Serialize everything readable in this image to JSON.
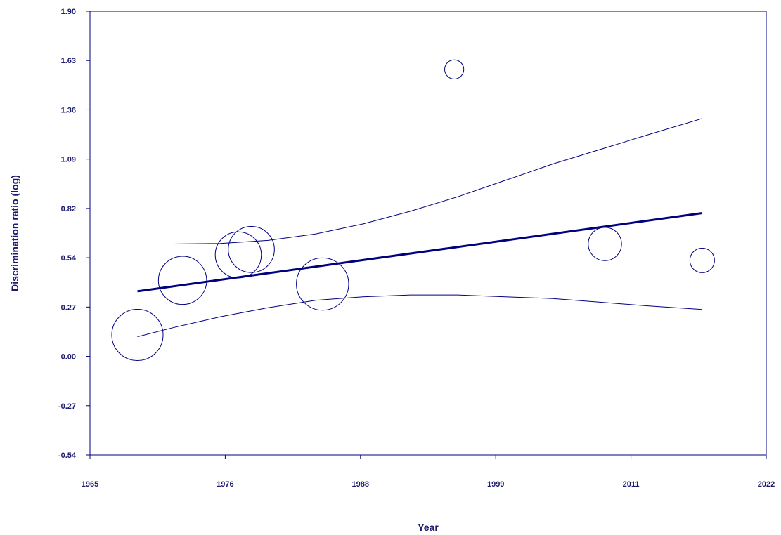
{
  "chart_data": {
    "type": "scatter",
    "title": "",
    "xlabel": "Year",
    "ylabel": "Discrimination ratio (log)",
    "xlim": [
      1965,
      2022
    ],
    "ylim": [
      -0.54,
      1.9
    ],
    "x_ticks": [
      "1965",
      "1976",
      "1988",
      "1999",
      "2011",
      "2022"
    ],
    "y_ticks": [
      "-0.54",
      "-0.27",
      "0.00",
      "0.27",
      "0.54",
      "0.82",
      "1.09",
      "1.36",
      "1.63",
      "1.90"
    ],
    "grid": false,
    "points": [
      {
        "x": 1969.0,
        "y": 0.12,
        "weight": 1.3
      },
      {
        "x": 1972.8,
        "y": 0.42,
        "weight": 1.15
      },
      {
        "x": 1977.5,
        "y": 0.56,
        "weight": 1.05
      },
      {
        "x": 1978.6,
        "y": 0.59,
        "weight": 1.05
      },
      {
        "x": 1984.6,
        "y": 0.4,
        "weight": 1.35
      },
      {
        "x": 1995.7,
        "y": 1.58,
        "weight": 0.18
      },
      {
        "x": 2008.4,
        "y": 0.62,
        "weight": 0.55
      },
      {
        "x": 2016.6,
        "y": 0.53,
        "weight": 0.3
      }
    ],
    "regression": {
      "x0": 1969.0,
      "x1": 2016.6,
      "y0": 0.36,
      "y1": 0.79
    },
    "ci_upper": [
      {
        "x": 1969.0,
        "y": 0.62
      },
      {
        "x": 1972.0,
        "y": 0.62
      },
      {
        "x": 1976.0,
        "y": 0.623
      },
      {
        "x": 1980.0,
        "y": 0.64
      },
      {
        "x": 1984.0,
        "y": 0.675
      },
      {
        "x": 1988.0,
        "y": 0.73
      },
      {
        "x": 1992.0,
        "y": 0.8
      },
      {
        "x": 1996.0,
        "y": 0.88
      },
      {
        "x": 2000.0,
        "y": 0.97
      },
      {
        "x": 2004.0,
        "y": 1.06
      },
      {
        "x": 2008.0,
        "y": 1.14
      },
      {
        "x": 2012.0,
        "y": 1.22
      },
      {
        "x": 2016.6,
        "y": 1.31
      }
    ],
    "ci_lower": [
      {
        "x": 1969.0,
        "y": 0.11
      },
      {
        "x": 1972.0,
        "y": 0.16
      },
      {
        "x": 1976.0,
        "y": 0.22
      },
      {
        "x": 1980.0,
        "y": 0.27
      },
      {
        "x": 1984.0,
        "y": 0.31
      },
      {
        "x": 1988.0,
        "y": 0.33
      },
      {
        "x": 1992.0,
        "y": 0.34
      },
      {
        "x": 1996.0,
        "y": 0.34
      },
      {
        "x": 2000.0,
        "y": 0.33
      },
      {
        "x": 2004.0,
        "y": 0.32
      },
      {
        "x": 2008.0,
        "y": 0.3
      },
      {
        "x": 2012.0,
        "y": 0.28
      },
      {
        "x": 2016.6,
        "y": 0.26
      }
    ],
    "colors": {
      "line": "#000080",
      "text": "#1a1a6e",
      "frame": "#000080"
    }
  }
}
